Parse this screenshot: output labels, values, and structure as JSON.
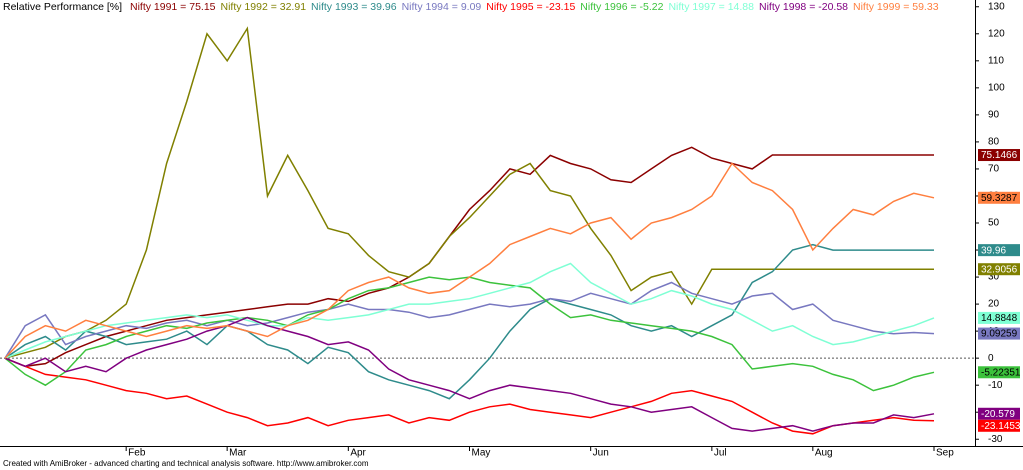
{
  "chart_data": {
    "type": "line",
    "title": "Relative Performance [%]",
    "footer": "Created with AmiBroker - advanced charting and technical analysis software. http://www.amibroker.com",
    "categories": [
      null,
      null,
      null,
      null,
      null,
      null,
      "Feb",
      null,
      null,
      null,
      null,
      "Mar",
      null,
      null,
      null,
      null,
      null,
      "Apr",
      null,
      null,
      null,
      null,
      null,
      "May",
      null,
      null,
      null,
      null,
      null,
      "Jun",
      null,
      null,
      null,
      null,
      null,
      "Jul",
      null,
      null,
      null,
      null,
      "Aug",
      null,
      null,
      null,
      null,
      null,
      "Sep"
    ],
    "ylim": [
      -32.5,
      132.5
    ],
    "yticks": [
      -30,
      -20,
      -10,
      0,
      10,
      20,
      30,
      40,
      50,
      60,
      70,
      80,
      90,
      100,
      110,
      120,
      130
    ],
    "zero_line": true,
    "series": [
      {
        "name": "Nifty 1991 = 75.15",
        "color": "#8b0000",
        "end_label": "75.1466",
        "values": [
          0,
          -3,
          -2,
          2,
          5,
          8,
          10,
          12,
          14,
          15,
          16,
          17,
          18,
          19,
          20,
          20,
          22,
          21,
          24,
          26,
          30,
          35,
          45,
          55,
          62,
          70,
          68,
          75,
          72,
          70,
          66,
          65,
          70,
          75,
          78,
          74,
          72,
          70,
          75.1466,
          75.1466,
          75.1466,
          75.1466,
          75.1466,
          75.1466,
          75.1466,
          75.1466,
          75.1466
        ]
      },
      {
        "name": "Nifty 1992 = 32.91",
        "color": "#808000",
        "end_label": "32.9056",
        "values": [
          0,
          2,
          4,
          8,
          10,
          14,
          20,
          40,
          72,
          95,
          120,
          110,
          122,
          60,
          75,
          62,
          48,
          46,
          38,
          32,
          30,
          35,
          45,
          52,
          60,
          68,
          72,
          62,
          60,
          48,
          38,
          25,
          30,
          32,
          20,
          32.9056,
          32.9056,
          32.9056,
          32.9056,
          32.9056,
          32.9056,
          32.9056,
          32.9056,
          32.9056,
          32.9056,
          32.9056,
          32.9056
        ]
      },
      {
        "name": "Nifty 1993 = 39.96",
        "color": "#2e8b8b",
        "end_label": "39.96",
        "values": [
          0,
          5,
          8,
          3,
          10,
          8,
          5,
          6,
          7,
          10,
          5,
          12,
          10,
          5,
          3,
          -2,
          4,
          2,
          -5,
          -8,
          -10,
          -12,
          -15,
          -8,
          0,
          10,
          18,
          22,
          20,
          18,
          16,
          12,
          10,
          12,
          8,
          12,
          16,
          28,
          32,
          40,
          42,
          39.96,
          39.96,
          39.96,
          39.96,
          39.96,
          39.96
        ]
      },
      {
        "name": "Nifty 1994 = 9.09",
        "color": "#7878c0",
        "end_label": "9.09259",
        "values": [
          0,
          12,
          16,
          5,
          8,
          10,
          12,
          11,
          13,
          14,
          12,
          14,
          12,
          13,
          15,
          17,
          18,
          20,
          18,
          18,
          17,
          15,
          16,
          18,
          20,
          19,
          20,
          22,
          21,
          24,
          22,
          20,
          25,
          28,
          24,
          22,
          20,
          23,
          24,
          18,
          20,
          14,
          12,
          10,
          9,
          9.5,
          9.09259
        ]
      },
      {
        "name": "Nifty 1995 = -23.15",
        "color": "#ff0000",
        "end_label": "-23.1453",
        "values": [
          0,
          -3,
          -6,
          -7,
          -8,
          -10,
          -12,
          -13,
          -15,
          -14,
          -17,
          -20,
          -22,
          -25,
          -24,
          -22,
          -25,
          -23,
          -22,
          -21,
          -24,
          -22,
          -23,
          -20,
          -18,
          -17,
          -19,
          -20,
          -21,
          -22,
          -20,
          -18,
          -16,
          -13,
          -12,
          -14,
          -16,
          -20,
          -24,
          -27,
          -28,
          -25,
          -24,
          -23,
          -22,
          -23,
          -23.1453
        ]
      },
      {
        "name": "Nifty 1996 = -5.22",
        "color": "#3cc23c",
        "end_label": "-5.22351",
        "values": [
          0,
          -6,
          -10,
          -5,
          3,
          5,
          8,
          10,
          12,
          11,
          13,
          14,
          15,
          14,
          12,
          16,
          18,
          22,
          25,
          26,
          28,
          30,
          29,
          30,
          28,
          27,
          26,
          20,
          15,
          16,
          14,
          13,
          12,
          11,
          10,
          8,
          5,
          -4,
          -3,
          -2,
          -3,
          -6,
          -8,
          -12,
          -10,
          -7,
          -5.22351
        ]
      },
      {
        "name": "Nifty 1997 = 14.88",
        "color": "#7fffd4",
        "end_label": "14.8848",
        "values": [
          0,
          3,
          6,
          8,
          10,
          12,
          13,
          14,
          15,
          16,
          15,
          16,
          14,
          12,
          12,
          15,
          14,
          15,
          16,
          18,
          20,
          20,
          21,
          22,
          24,
          26,
          28,
          32,
          35,
          28,
          24,
          20,
          22,
          25,
          23,
          20,
          18,
          14,
          10,
          12,
          8,
          5,
          6,
          8,
          10,
          12,
          14.8848
        ]
      },
      {
        "name": "Nifty 1998 = -20.58",
        "color": "#800080",
        "end_label": "-20.579",
        "values": [
          0,
          -3,
          0,
          -5,
          -3,
          -5,
          0,
          3,
          5,
          7,
          10,
          12,
          15,
          12,
          10,
          8,
          5,
          6,
          3,
          -4,
          -8,
          -10,
          -12,
          -15,
          -12,
          -10,
          -11,
          -12,
          -13,
          -15,
          -17,
          -18,
          -20,
          -19,
          -18,
          -22,
          -26,
          -27,
          -26,
          -25,
          -27,
          -25,
          -24,
          -24,
          -21,
          -22,
          -20.579
        ]
      },
      {
        "name": "Nifty 1999 = 59.33",
        "color": "#ff7f3f",
        "end_label": "59.3287",
        "values": [
          0,
          8,
          12,
          10,
          14,
          12,
          10,
          8,
          10,
          12,
          11,
          12,
          10,
          8,
          12,
          14,
          18,
          25,
          28,
          30,
          26,
          24,
          25,
          30,
          35,
          42,
          45,
          48,
          46,
          50,
          52,
          44,
          50,
          52,
          55,
          60,
          72,
          65,
          62,
          55,
          40,
          48,
          55,
          53,
          58,
          61,
          59.3287
        ]
      }
    ]
  }
}
